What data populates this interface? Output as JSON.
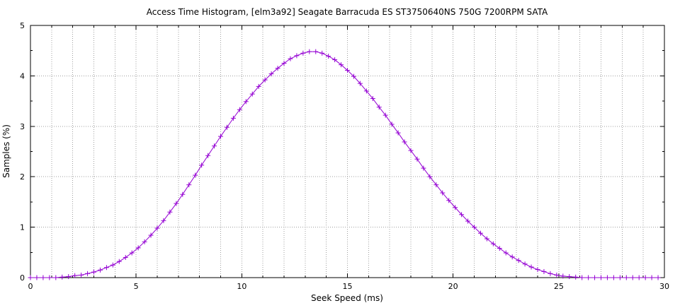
{
  "chart_data": {
    "type": "line",
    "title": "Access Time Histogram, [elm3a92] Seagate Barracuda ES ST3750640NS 750G 7200RPM SATA",
    "xlabel": "Seek Speed (ms)",
    "ylabel": "Samples (%)",
    "xlim": [
      0,
      30
    ],
    "ylim": [
      0,
      5
    ],
    "x_ticks": [
      0,
      5,
      10,
      15,
      20,
      25,
      30
    ],
    "y_ticks": [
      0,
      1,
      2,
      3,
      4,
      5
    ],
    "grid": true,
    "grid_style": "dotted",
    "legend": "none",
    "marker": "plus",
    "colors": {
      "series": "#9400d3",
      "grid": "#a0a0a0",
      "axis": "#000000"
    },
    "series": [
      {
        "x": [
          0.0,
          0.3,
          0.6,
          0.9,
          1.2,
          1.5,
          1.8,
          2.1,
          2.4,
          2.7,
          3.0,
          3.3,
          3.6,
          3.9,
          4.2,
          4.5,
          4.8,
          5.1,
          5.4,
          5.7,
          6.0,
          6.3,
          6.6,
          6.9,
          7.2,
          7.5,
          7.8,
          8.1,
          8.4,
          8.7,
          9.0,
          9.3,
          9.6,
          9.9,
          10.2,
          10.5,
          10.8,
          11.1,
          11.4,
          11.7,
          12.0,
          12.3,
          12.6,
          12.9,
          13.2,
          13.5,
          13.8,
          14.1,
          14.4,
          14.7,
          15.0,
          15.3,
          15.6,
          15.9,
          16.2,
          16.5,
          16.8,
          17.1,
          17.4,
          17.7,
          18.0,
          18.3,
          18.6,
          18.9,
          19.2,
          19.5,
          19.8,
          20.1,
          20.4,
          20.7,
          21.0,
          21.3,
          21.6,
          21.9,
          22.2,
          22.5,
          22.8,
          23.1,
          23.4,
          23.7,
          24.0,
          24.3,
          24.6,
          24.9,
          25.2,
          25.5,
          25.8,
          26.1,
          26.4,
          26.7,
          27.0,
          27.3,
          27.6,
          27.9,
          28.2,
          28.5,
          28.8,
          29.1,
          29.4,
          29.7
        ],
        "y": [
          0.0,
          0.0,
          0.0,
          0.0,
          0.0,
          0.01,
          0.02,
          0.04,
          0.05,
          0.08,
          0.11,
          0.15,
          0.2,
          0.25,
          0.32,
          0.4,
          0.49,
          0.59,
          0.71,
          0.84,
          0.98,
          1.13,
          1.3,
          1.47,
          1.65,
          1.84,
          2.03,
          2.23,
          2.42,
          2.61,
          2.8,
          2.98,
          3.16,
          3.33,
          3.49,
          3.64,
          3.79,
          3.92,
          4.04,
          4.15,
          4.25,
          4.34,
          4.4,
          4.45,
          4.48,
          4.48,
          4.45,
          4.39,
          4.32,
          4.22,
          4.11,
          3.99,
          3.85,
          3.7,
          3.55,
          3.38,
          3.22,
          3.04,
          2.87,
          2.69,
          2.52,
          2.35,
          2.17,
          2.0,
          1.84,
          1.68,
          1.53,
          1.39,
          1.25,
          1.12,
          1.0,
          0.88,
          0.77,
          0.67,
          0.58,
          0.49,
          0.41,
          0.34,
          0.27,
          0.21,
          0.16,
          0.12,
          0.08,
          0.05,
          0.03,
          0.02,
          0.01,
          0.0,
          0.0,
          0.0,
          0.0,
          0.0,
          0.0,
          0.0,
          0.0,
          0.0,
          0.0,
          0.0,
          0.0,
          0.0
        ]
      }
    ]
  }
}
